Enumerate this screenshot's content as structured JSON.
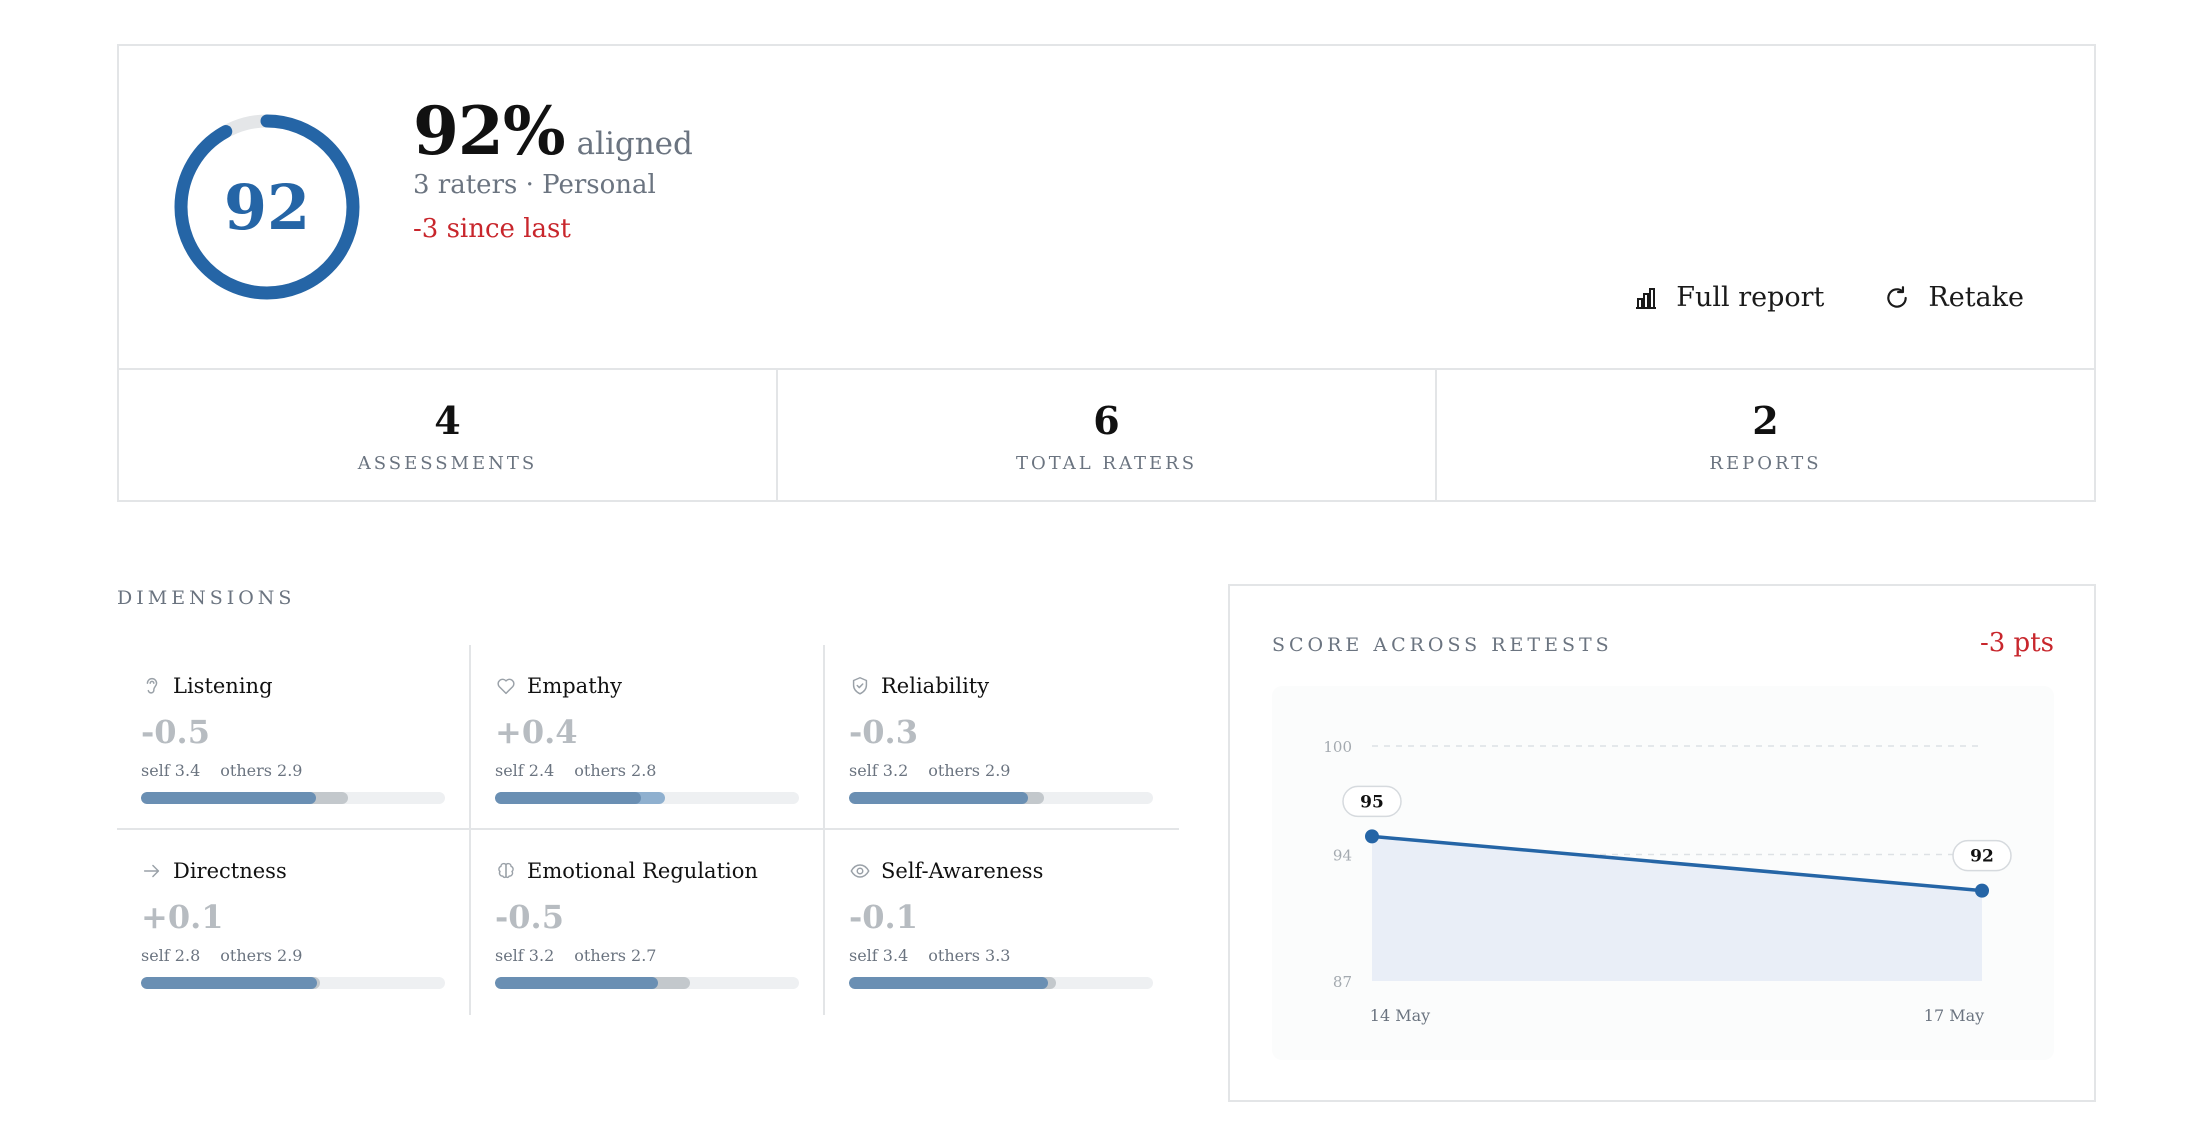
{
  "summary": {
    "score": "92",
    "score_fraction": 0.92,
    "percent": "92%",
    "aligned_label": "aligned",
    "raters_line": "3 raters · Personal",
    "delta_line": "-3 since last",
    "actions": {
      "full_report": "Full report",
      "retake": "Retake"
    },
    "stats": [
      {
        "value": "4",
        "label": "ASSESSMENTS"
      },
      {
        "value": "6",
        "label": "TOTAL RATERS"
      },
      {
        "value": "2",
        "label": "REPORTS"
      }
    ]
  },
  "dimensions": {
    "title": "DIMENSIONS",
    "items": [
      {
        "name": "Listening",
        "icon": "ear-icon",
        "delta": "-0.5",
        "self": "self 3.4",
        "others": "others 2.9",
        "self_fraction": 0.575,
        "others_fraction": 0.68
      },
      {
        "name": "Empathy",
        "icon": "heart-icon",
        "delta": "+0.4",
        "self": "self 2.4",
        "others": "others 2.8",
        "self_fraction": 0.48,
        "others_fraction": 0.56
      },
      {
        "name": "Reliability",
        "icon": "shield-check-icon",
        "delta": "-0.3",
        "self": "self 3.2",
        "others": "others 2.9",
        "self_fraction": 0.59,
        "others_fraction": 0.64
      },
      {
        "name": "Directness",
        "icon": "arrow-right-icon",
        "delta": "+0.1",
        "self": "self 2.8",
        "others": "others 2.9",
        "self_fraction": 0.58,
        "others_fraction": 0.59
      },
      {
        "name": "Emotional Regulation",
        "icon": "brain-icon",
        "delta": "-0.5",
        "self": "self 3.2",
        "others": "others 2.7",
        "self_fraction": 0.535,
        "others_fraction": 0.64
      },
      {
        "name": "Self-Awareness",
        "icon": "eye-icon",
        "delta": "-0.1",
        "self": "self 3.4",
        "others": "others 3.3",
        "self_fraction": 0.655,
        "others_fraction": 0.68
      }
    ]
  },
  "chart": {
    "title": "SCORE ACROSS RETESTS",
    "delta": "-3 pts"
  },
  "chart_data": {
    "type": "area",
    "categories": [
      "14 May",
      "17 May"
    ],
    "series": [
      {
        "values": [
          95,
          92
        ]
      }
    ],
    "ylim": [
      87,
      100
    ],
    "yticks": [
      100,
      94,
      87
    ],
    "data_labels": [
      "95",
      "92"
    ],
    "grid": true,
    "colors": {
      "line": "#2565a6",
      "fill": "#e9eef7"
    }
  },
  "colors": {
    "accent": "#2565a6",
    "negative": "#c8262c",
    "muted": "#6b7480",
    "bar_self": "#6a8fb3",
    "bar_others": "#c3c8cc"
  }
}
